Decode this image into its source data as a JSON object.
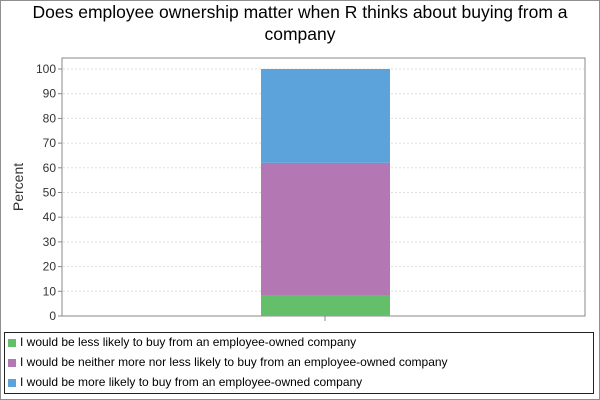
{
  "chart_data": {
    "type": "bar",
    "stacked": true,
    "title": "Does employee ownership matter when R thinks about buying from a company",
    "ylabel": "Percent",
    "xlabel": "",
    "ylim": [
      0,
      100
    ],
    "yticks": [
      0,
      10,
      20,
      30,
      40,
      50,
      60,
      70,
      80,
      90,
      100
    ],
    "grid": true,
    "legend_position": "bottom",
    "categories": [
      ""
    ],
    "series": [
      {
        "name": "I would be less likely to buy from an employee-owned company",
        "values": [
          8.5
        ],
        "color": "#63bf6a"
      },
      {
        "name": "I would be neither more nor less likely to buy from an employee-owned company",
        "values": [
          53.5
        ],
        "color": "#b377b3"
      },
      {
        "name": "I would be more likely to buy from an employee-owned company",
        "values": [
          38
        ],
        "color": "#5ca3db"
      }
    ]
  }
}
